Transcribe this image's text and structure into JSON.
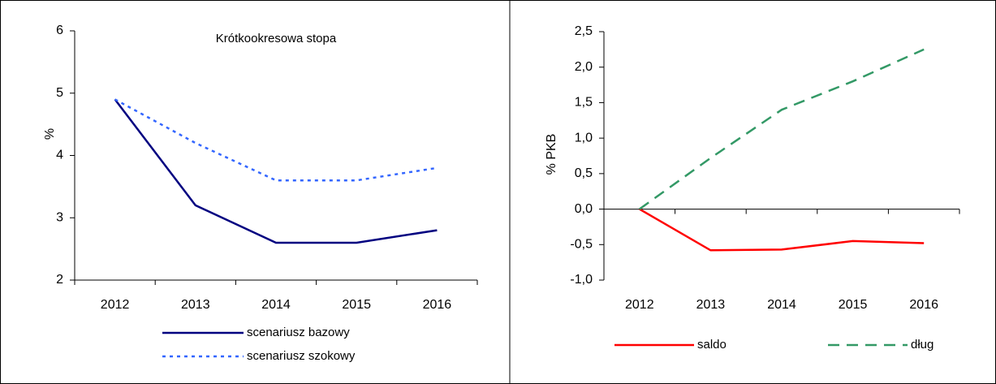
{
  "chart_data": [
    {
      "type": "line",
      "title": "Krótkookresowa stopa",
      "y_label": "%",
      "categories": [
        "2012",
        "2013",
        "2014",
        "2015",
        "2016"
      ],
      "series": [
        {
          "name": "scenariusz bazowy",
          "color": "#000080",
          "dash": "solid",
          "values": [
            4.9,
            3.2,
            2.6,
            2.6,
            2.8
          ]
        },
        {
          "name": "scenariusz szokowy",
          "color": "#3366ff",
          "dash": "dotted",
          "values": [
            4.9,
            4.2,
            3.6,
            3.6,
            3.8
          ]
        }
      ],
      "ylim": [
        2,
        6
      ],
      "yticks": [
        2,
        3,
        4,
        5,
        6
      ],
      "legend": "bottom"
    },
    {
      "type": "line",
      "y_label": "% PKB",
      "categories": [
        "2012",
        "2013",
        "2014",
        "2015",
        "2016"
      ],
      "series": [
        {
          "name": "saldo",
          "color": "#ff0000",
          "dash": "solid",
          "values": [
            0,
            -0.58,
            -0.57,
            -0.45,
            -0.48
          ]
        },
        {
          "name": "dług",
          "color": "#339966",
          "dash": "dashed",
          "values": [
            0,
            0.72,
            1.4,
            1.8,
            2.25
          ]
        }
      ],
      "ylim": [
        -1,
        2.5
      ],
      "yticks": [
        {
          "value": -1,
          "label": "-1,0"
        },
        {
          "value": -0.5,
          "label": "-0,5"
        },
        {
          "value": 0,
          "label": "0,0"
        },
        {
          "value": 0.5,
          "label": "0,5"
        },
        {
          "value": 1,
          "label": "1,0"
        },
        {
          "value": 1.5,
          "label": "1,5"
        },
        {
          "value": 2,
          "label": "2,0"
        },
        {
          "value": 2.5,
          "label": "2,5"
        }
      ],
      "legend": "bottom"
    }
  ]
}
